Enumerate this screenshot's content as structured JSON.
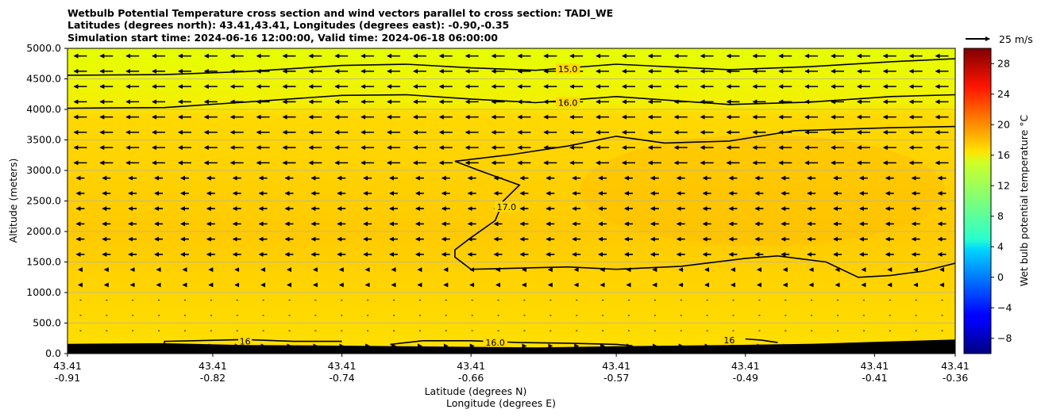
{
  "chart_data": {
    "type": "heatmap",
    "title": [
      "Wetbulb Potential Temperature cross section and wind vectors parallel to cross section: TADI_WE",
      "Latitudes (degrees north): 43.41,43.41, Longitudes (degrees east): -0.90,-0.35",
      "Simulation start time: 2024-06-16 12:00:00, Valid time: 2024-06-18 06:00:00"
    ],
    "ylabel": "Altitude (meters)",
    "xlabel_lat": "Latitude (degrees N)",
    "xlabel_lon": "Longitude (degrees E)",
    "ylim": [
      0,
      5000
    ],
    "yticks": [
      "0.0",
      "500.0",
      "1000.0",
      "1500.0",
      "2000.0",
      "2500.0",
      "3000.0",
      "3500.0",
      "4000.0",
      "4500.0",
      "5000.0"
    ],
    "x_range": [
      -0.91,
      -0.36
    ],
    "xticks": [
      {
        "lon": -0.91,
        "lat_label": "43.41",
        "lon_label": "-0.91"
      },
      {
        "lon": -0.82,
        "lat_label": "43.41",
        "lon_label": "-0.82"
      },
      {
        "lon": -0.74,
        "lat_label": "43.41",
        "lon_label": "-0.74"
      },
      {
        "lon": -0.66,
        "lat_label": "43.41",
        "lon_label": "-0.66"
      },
      {
        "lon": -0.57,
        "lat_label": "43.41",
        "lon_label": "-0.57"
      },
      {
        "lon": -0.49,
        "lat_label": "43.41",
        "lon_label": "-0.49"
      },
      {
        "lon": -0.41,
        "lat_label": "43.41",
        "lon_label": "-0.41"
      },
      {
        "lon": -0.36,
        "lat_label": "43.41",
        "lon_label": "-0.36"
      }
    ],
    "grid": true,
    "colorbar": {
      "label": "Wet bulb potential temperature °C",
      "range": [
        -10,
        30
      ],
      "ticks": [
        "−8",
        "−4",
        "0",
        "4",
        "8",
        "12",
        "16",
        "20",
        "24",
        "28"
      ],
      "colormap": "jet"
    },
    "quiver_key": {
      "label": "25 m/s",
      "speed": 25
    },
    "contours": [
      {
        "level": 15.0,
        "label": "15.0",
        "label_at": {
          "lon": -0.6,
          "alt": 4660
        },
        "points": [
          [
            -0.91,
            4560
          ],
          [
            -0.85,
            4570
          ],
          [
            -0.8,
            4620
          ],
          [
            -0.74,
            4720
          ],
          [
            -0.7,
            4740
          ],
          [
            -0.66,
            4680
          ],
          [
            -0.62,
            4640
          ],
          [
            -0.57,
            4740
          ],
          [
            -0.5,
            4650
          ],
          [
            -0.45,
            4700
          ],
          [
            -0.4,
            4780
          ],
          [
            -0.36,
            4830
          ]
        ]
      },
      {
        "level": 16.0,
        "label": "16.0",
        "label_at": {
          "lon": -0.6,
          "alt": 4110
        },
        "points": [
          [
            -0.91,
            4020
          ],
          [
            -0.85,
            4030
          ],
          [
            -0.8,
            4120
          ],
          [
            -0.74,
            4230
          ],
          [
            -0.7,
            4240
          ],
          [
            -0.66,
            4170
          ],
          [
            -0.62,
            4110
          ],
          [
            -0.57,
            4210
          ],
          [
            -0.5,
            4080
          ],
          [
            -0.45,
            4120
          ],
          [
            -0.4,
            4210
          ],
          [
            -0.36,
            4240
          ]
        ]
      },
      {
        "level": 17.0,
        "label": "17.0",
        "label_at": {
          "lon": -0.638,
          "alt": 2400
        },
        "points": [
          [
            -0.36,
            3720
          ],
          [
            -0.4,
            3700
          ],
          [
            -0.46,
            3650
          ],
          [
            -0.5,
            3480
          ],
          [
            -0.54,
            3450
          ],
          [
            -0.57,
            3560
          ],
          [
            -0.6,
            3400
          ],
          [
            -0.635,
            3260
          ],
          [
            -0.67,
            3150
          ],
          [
            -0.655,
            3000
          ],
          [
            -0.63,
            2760
          ],
          [
            -0.64,
            2500
          ],
          [
            -0.645,
            2180
          ],
          [
            -0.66,
            1900
          ],
          [
            -0.67,
            1700
          ],
          [
            -0.67,
            1580
          ],
          [
            -0.66,
            1380
          ],
          [
            -0.63,
            1400
          ],
          [
            -0.6,
            1420
          ],
          [
            -0.57,
            1380
          ],
          [
            -0.53,
            1430
          ],
          [
            -0.49,
            1560
          ],
          [
            -0.47,
            1600
          ],
          [
            -0.44,
            1500
          ],
          [
            -0.42,
            1250
          ],
          [
            -0.4,
            1280
          ],
          [
            -0.38,
            1350
          ],
          [
            -0.36,
            1480
          ]
        ]
      },
      {
        "level": 16.0,
        "label": "16",
        "label_at": {
          "lon": -0.8,
          "alt": 200
        },
        "points": [
          [
            -0.85,
            110
          ],
          [
            -0.85,
            200
          ],
          [
            -0.8,
            230
          ],
          [
            -0.77,
            200
          ],
          [
            -0.74,
            200
          ]
        ]
      },
      {
        "level": 16.0,
        "label": "16.0",
        "label_at": {
          "lon": -0.645,
          "alt": 180
        },
        "points": [
          [
            -0.71,
            150
          ],
          [
            -0.69,
            210
          ],
          [
            -0.66,
            210
          ],
          [
            -0.63,
            180
          ],
          [
            -0.6,
            170
          ],
          [
            -0.57,
            150
          ],
          [
            -0.56,
            130
          ]
        ]
      },
      {
        "level": 16.0,
        "label": "16",
        "label_at": {
          "lon": -0.5,
          "alt": 220
        },
        "points": [
          [
            -0.49,
            240
          ],
          [
            -0.48,
            220
          ],
          [
            -0.47,
            180
          ]
        ]
      }
    ],
    "terrain_top_alt": [
      [
        -0.91,
        160
      ],
      [
        -0.85,
        170
      ],
      [
        -0.8,
        140
      ],
      [
        -0.74,
        130
      ],
      [
        -0.7,
        120
      ],
      [
        -0.66,
        110
      ],
      [
        -0.62,
        100
      ],
      [
        -0.57,
        120
      ],
      [
        -0.5,
        140
      ],
      [
        -0.45,
        160
      ],
      [
        -0.4,
        200
      ],
      [
        -0.36,
        230
      ]
    ]
  }
}
